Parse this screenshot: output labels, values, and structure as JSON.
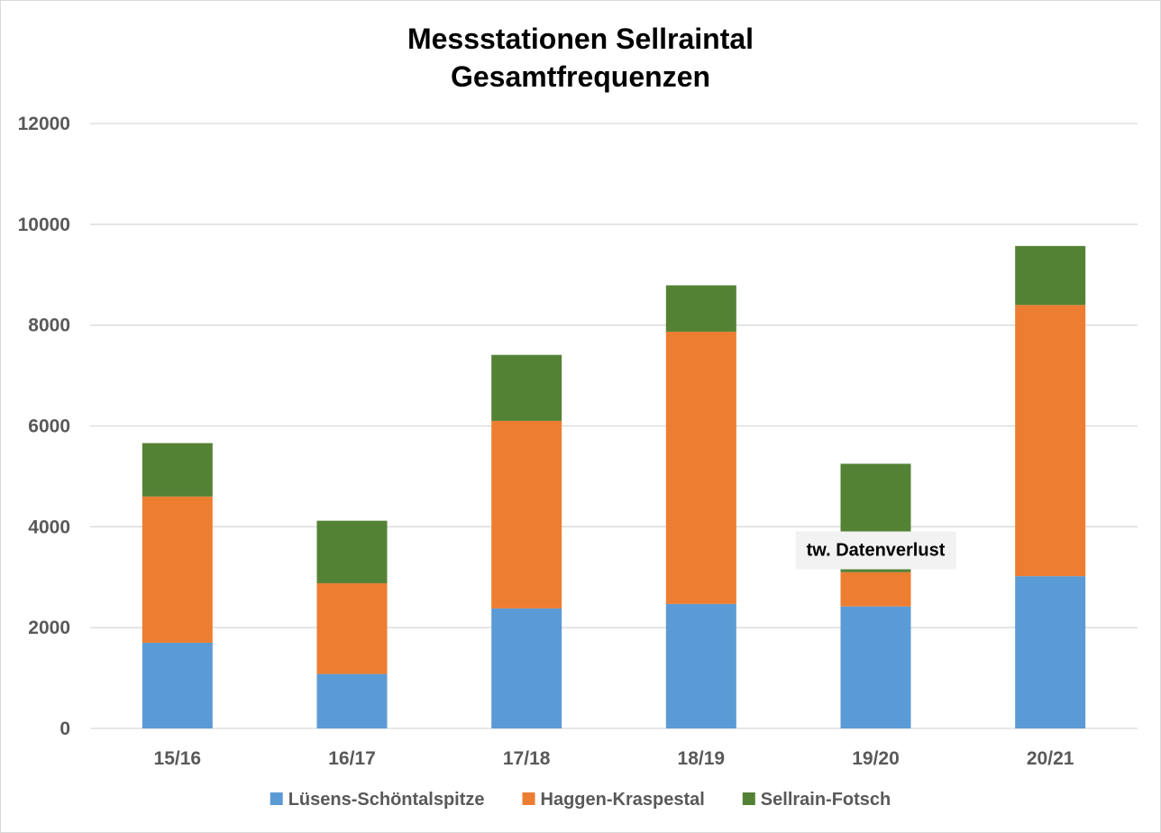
{
  "chart_data": {
    "type": "bar",
    "stacked": true,
    "title_lines": [
      "Messstationen Sellraintal",
      "Gesamtfrequenzen"
    ],
    "categories": [
      "15/16",
      "16/17",
      "17/18",
      "18/19",
      "19/20",
      "20/21"
    ],
    "series": [
      {
        "name": "Lüsens-Schöntalspitze",
        "color": "#5b9bd5",
        "values": [
          1700,
          1080,
          2380,
          2470,
          2420,
          3020
        ]
      },
      {
        "name": "Haggen-Kraspestal",
        "color": "#ed7d31",
        "values": [
          2900,
          1800,
          3720,
          5400,
          680,
          5380
        ]
      },
      {
        "name": "Sellrain-Fotsch",
        "color": "#548235",
        "values": [
          1060,
          1240,
          1310,
          920,
          2150,
          1170
        ]
      }
    ],
    "yticks": [
      "0",
      "2000",
      "4000",
      "6000",
      "8000",
      "10000",
      "12000"
    ],
    "ylim": [
      0,
      12000
    ],
    "grid": true,
    "legend_position": "bottom",
    "annotation": {
      "text": "tw. Datenverlust",
      "category": "19/20",
      "y": 3550
    }
  }
}
